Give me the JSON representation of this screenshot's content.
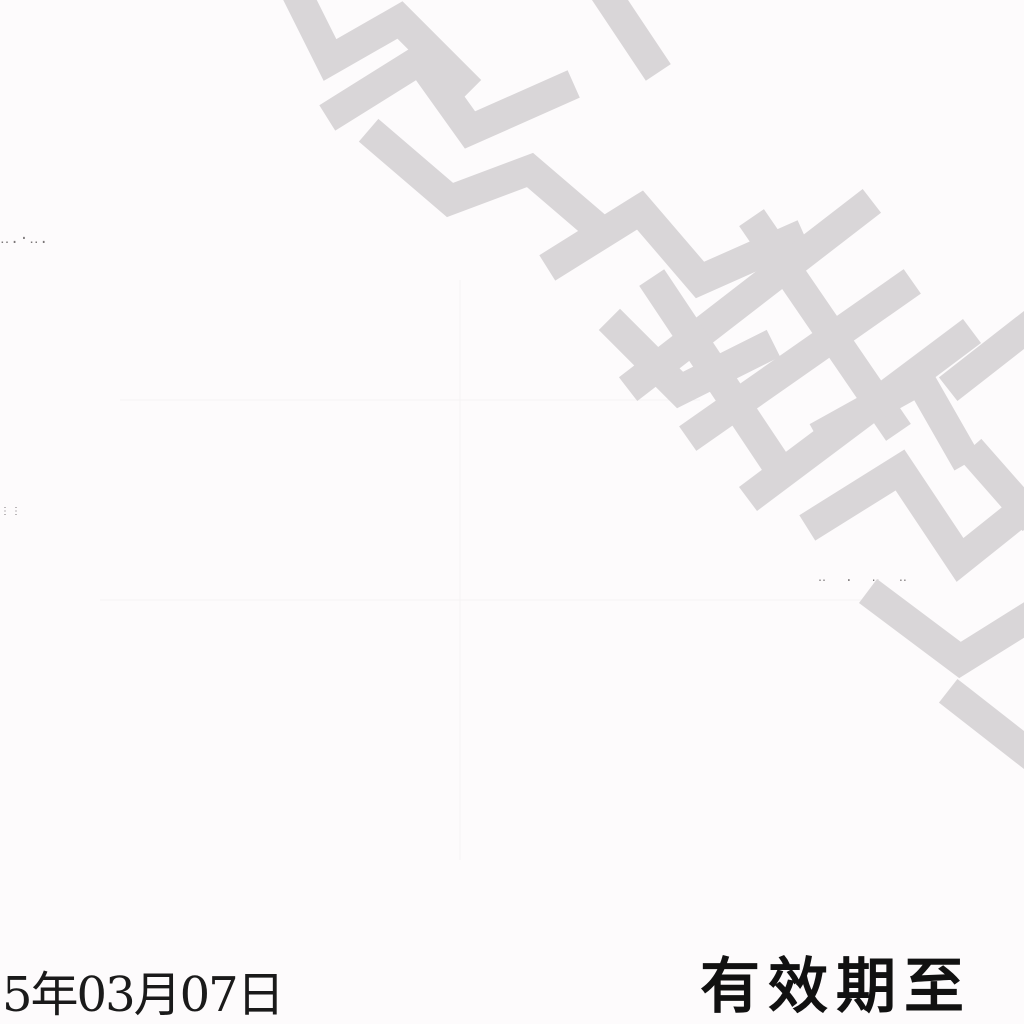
{
  "watermark": {
    "text": "冷维卷",
    "color": "#d9d6d8"
  },
  "document": {
    "issue_date": "5年03月07日",
    "valid_until_label": "有效期至"
  },
  "scan_marks": {
    "left_top": "‥.·‥.",
    "left_mid": "⋮⋮",
    "right_mid": "‥ . ‥ ‥"
  }
}
